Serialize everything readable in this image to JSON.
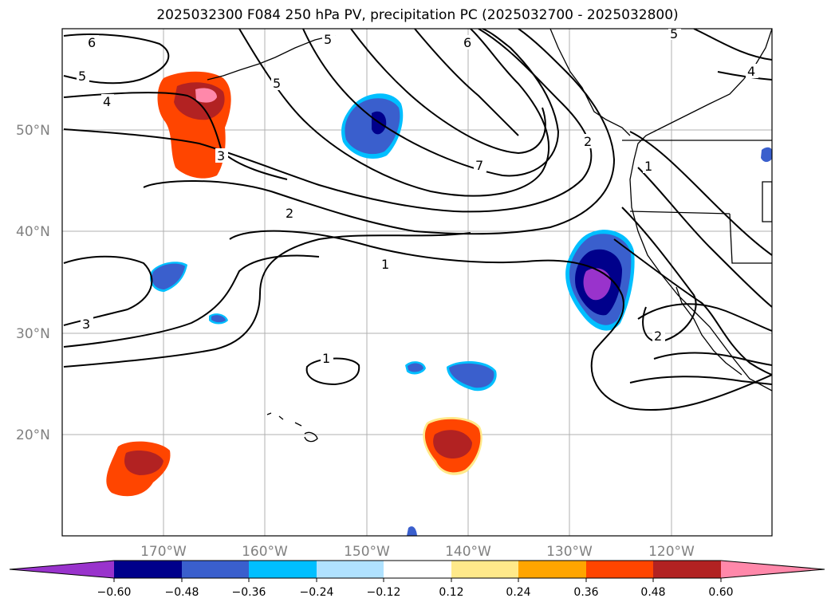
{
  "title": "2025032300 F084 250 hPa PV, precipitation PC (2025032700 - 2025032800)",
  "map": {
    "lat_labels": [
      "50°N",
      "40°N",
      "30°N",
      "20°N"
    ],
    "lon_labels": [
      "170°W",
      "160°W",
      "150°W",
      "140°W",
      "130°W",
      "120°W"
    ],
    "grid": true
  },
  "contour_labels": [
    "6",
    "5",
    "4",
    "5",
    "5",
    "6",
    "5",
    "4",
    "3",
    "7",
    "2",
    "1",
    "2",
    "1",
    "3",
    "1",
    "2"
  ],
  "colorbar": {
    "colors": [
      "#9933cc",
      "#00008b",
      "#3a5fcd",
      "#00bfff",
      "#b0e2ff",
      "#ffffff",
      "#ffe98a",
      "#ffa500",
      "#ff4500",
      "#b22222",
      "#ff88aa"
    ],
    "tick_labels": [
      "−0.60",
      "−0.48",
      "−0.36",
      "−0.24",
      "−0.12",
      "0.12",
      "0.24",
      "0.36",
      "0.48",
      "0.60"
    ]
  }
}
